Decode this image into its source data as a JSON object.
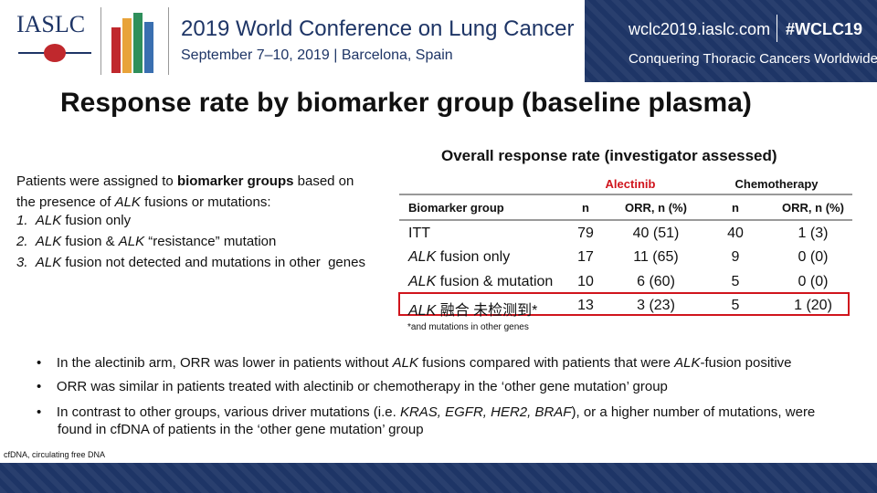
{
  "header": {
    "org": "IASLC",
    "conference": "2019 World Conference on Lung Cancer",
    "dates": "September 7–10, 2019 | Barcelona, Spain",
    "website": "wclc2019.iaslc.com",
    "hashtag": "#WCLC19",
    "tagline": "Conquering Thoracic Cancers Worldwide"
  },
  "title": "Response rate by biomarker group (baseline plasma)",
  "intro": {
    "text": [
      "Patients were assigned to ",
      "biomarker groups",
      " based on the presence of ",
      "ALK",
      " fusions or mutations:"
    ],
    "items": [
      [
        "1.",
        "ALK",
        " fusion only"
      ],
      [
        "2.",
        "ALK",
        " fusion & ",
        "ALK",
        " “resistance” mutation"
      ],
      [
        "3.",
        "ALK",
        " fusion not detected and mutations in other  genes"
      ]
    ]
  },
  "table": {
    "title": "Overall response rate (investigator assessed)",
    "groups": [
      "Alectinib",
      "Chemotherapy"
    ],
    "columns": [
      "Biomarker group",
      "n",
      "ORR, n (%)",
      "n",
      "ORR, n (%)"
    ],
    "rows": [
      [
        [
          "ITT"
        ],
        79,
        "40 (51)",
        40,
        "1 (3)"
      ],
      [
        [
          "ALK",
          " fusion only"
        ],
        17,
        "11 (65)",
        9,
        "0 (0)"
      ],
      [
        [
          "ALK",
          " fusion & mutation"
        ],
        10,
        "6 (60)",
        5,
        "0 (0)"
      ],
      [
        [
          "ALK",
          " 融合 未检测到*"
        ],
        13,
        "3 (23)",
        5,
        "1 (20)"
      ]
    ],
    "footnote": "*and mutations in other genes"
  },
  "bullets": [
    [
      "In the alectinib arm, ORR was lower in patients without ",
      "ALK",
      " fusions compared with patients that were ",
      "ALK",
      "-fusion positive"
    ],
    [
      "ORR was similar in patients treated with alectinib or chemotherapy in the ‘other gene mutation’ group"
    ],
    [
      "In contrast to other groups, various driver mutations (i.e. ",
      "KRAS, EGFR, HER2, BRAF",
      "), or a higher number of mutations, were found in cfDNA of patients in the ‘other gene mutation’ group"
    ]
  ],
  "footer_note": "cfDNA, circulating free DNA"
}
